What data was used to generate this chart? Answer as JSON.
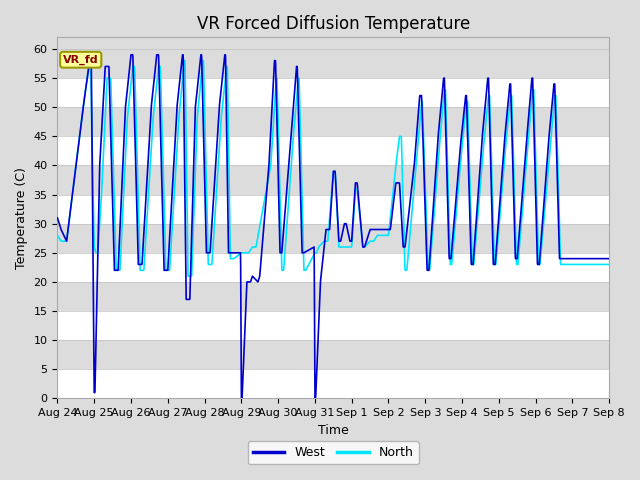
{
  "title": "VR Forced Diffusion Temperature",
  "ylabel": "Temperature (C)",
  "xlabel": "Time",
  "annotation_text": "VR_fd",
  "west_color": "#0000CD",
  "north_color": "#00E5FF",
  "bg_color": "#DCDCDC",
  "white_band": "#F0F0F0",
  "ylim": [
    0,
    62
  ],
  "yticks": [
    0,
    5,
    10,
    15,
    20,
    25,
    30,
    35,
    40,
    45,
    50,
    55,
    60
  ],
  "x_labels": [
    "Aug 24",
    "Aug 25",
    "Aug 26",
    "Aug 27",
    "Aug 28",
    "Aug 29",
    "Aug 30",
    "Aug 31",
    "Sep 1",
    "Sep 2",
    "Sep 3",
    "Sep 4",
    "Sep 5",
    "Sep 6",
    "Sep 7",
    "Sep 8"
  ],
  "title_fontsize": 12,
  "axis_fontsize": 9,
  "tick_fontsize": 8
}
